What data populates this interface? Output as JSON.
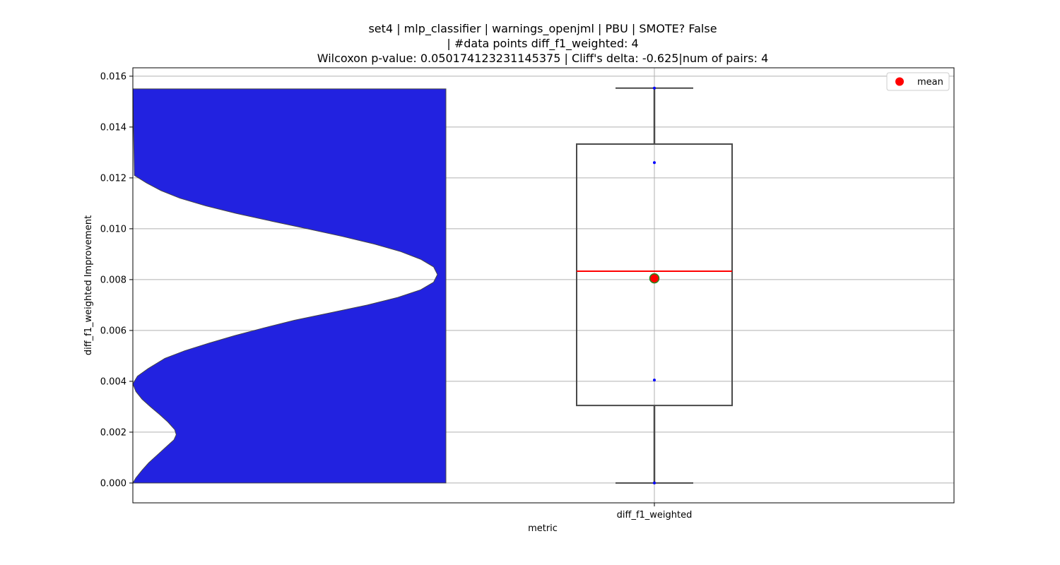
{
  "chart_data": {
    "type": "violin+box",
    "title_lines": [
      "set4 | mlp_classifier | warnings_openjml | PBU | SMOTE? False",
      "| #data points diff_f1_weighted: 4",
      "Wilcoxon p-value: 0.050174123231145375 | Cliff's delta: -0.625|num of pairs: 4"
    ],
    "xlabel": "metric",
    "ylabel": "diff_f1_weighted Improvement",
    "x_categories": [
      "diff_f1_weighted"
    ],
    "ylim": [
      -0.00078,
      0.01633
    ],
    "y_ticks": [
      0.0,
      0.002,
      0.004,
      0.006,
      0.008,
      0.01,
      0.012,
      0.014,
      0.016
    ],
    "y_tick_labels": [
      "0.000",
      "0.002",
      "0.004",
      "0.006",
      "0.008",
      "0.010",
      "0.012",
      "0.014",
      "0.016"
    ],
    "grid": true,
    "legend": {
      "placement": "upper right",
      "entries": [
        {
          "label": "mean",
          "color": "#ff0000",
          "marker": "circle"
        }
      ]
    },
    "points": [
      0.0,
      0.00405,
      0.0126,
      0.01553
    ],
    "box": {
      "whisker_low": 0.0,
      "q1": 0.00305,
      "median": 0.00833,
      "q3": 0.01333,
      "whisker_high": 0.01553,
      "mean": 0.00805
    },
    "violin_profile": [
      [
        0.0,
        0.0
      ],
      [
        0.0002,
        0.04
      ],
      [
        0.0005,
        0.12
      ],
      [
        0.0008,
        0.21
      ],
      [
        0.0011,
        0.32
      ],
      [
        0.0014,
        0.43
      ],
      [
        0.0017,
        0.54
      ],
      [
        0.0019,
        0.57
      ],
      [
        0.0021,
        0.55
      ],
      [
        0.0024,
        0.46
      ],
      [
        0.0027,
        0.35
      ],
      [
        0.003,
        0.23
      ],
      [
        0.0033,
        0.12
      ],
      [
        0.0036,
        0.04
      ],
      [
        0.0039,
        0.0
      ],
      [
        0.0042,
        0.06
      ],
      [
        0.0045,
        0.2
      ],
      [
        0.0049,
        0.42
      ],
      [
        0.0052,
        0.68
      ],
      [
        0.0055,
        1.0
      ],
      [
        0.0058,
        1.34
      ],
      [
        0.0061,
        1.72
      ],
      [
        0.0064,
        2.12
      ],
      [
        0.0067,
        2.6
      ],
      [
        0.007,
        3.08
      ],
      [
        0.0073,
        3.48
      ],
      [
        0.0076,
        3.78
      ],
      [
        0.0079,
        3.95
      ],
      [
        0.0082,
        4.0
      ],
      [
        0.0085,
        3.95
      ],
      [
        0.0088,
        3.78
      ],
      [
        0.0091,
        3.52
      ],
      [
        0.0094,
        3.17
      ],
      [
        0.0097,
        2.75
      ],
      [
        0.01,
        2.29
      ],
      [
        0.0103,
        1.82
      ],
      [
        0.0106,
        1.36
      ],
      [
        0.0109,
        0.96
      ],
      [
        0.0112,
        0.62
      ],
      [
        0.0115,
        0.37
      ],
      [
        0.0118,
        0.18
      ],
      [
        0.0121,
        0.02
      ],
      [
        0.0155,
        0.0
      ]
    ],
    "violin_color": "#2222e0",
    "median_color": "#ff0000",
    "mean_color": "#ff0000",
    "mean_edge_color": "#228b22",
    "point_color": "#0000ff"
  }
}
